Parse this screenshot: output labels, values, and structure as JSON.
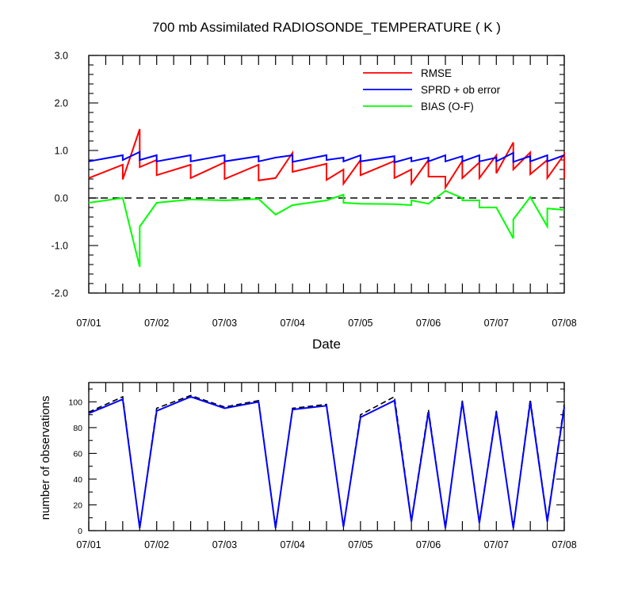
{
  "chart_data": [
    {
      "type": "line",
      "title": "700 mb Assimilated RADIOSONDE_TEMPERATURE ( K )",
      "xlabel": "Date",
      "ylabel": "",
      "x_ticks": [
        "07/01",
        "07/02",
        "07/03",
        "07/04",
        "07/05",
        "07/06",
        "07/07",
        "07/08"
      ],
      "y_ticks": [
        "-2.0",
        "-1.0",
        "0.0",
        "1.0",
        "2.0",
        "3.0"
      ],
      "xlim": [
        0,
        7
      ],
      "ylim": [
        -2.0,
        3.0
      ],
      "zero_line": true,
      "legend_position": "top-right",
      "series": [
        {
          "name": "RMSE",
          "color": "#ff0000",
          "points": [
            [
              0,
              0.42
            ],
            [
              0.5,
              0.7
            ],
            [
              0.5,
              0.39
            ],
            [
              0.75,
              1.45
            ],
            [
              0.75,
              0.65
            ],
            [
              1,
              0.8
            ],
            [
              1,
              0.48
            ],
            [
              1.5,
              0.7
            ],
            [
              1.5,
              0.42
            ],
            [
              2,
              0.75
            ],
            [
              2,
              0.4
            ],
            [
              2.5,
              0.7
            ],
            [
              2.5,
              0.37
            ],
            [
              2.75,
              0.42
            ],
            [
              3,
              0.95
            ],
            [
              3,
              0.55
            ],
            [
              3.5,
              0.72
            ],
            [
              3.5,
              0.38
            ],
            [
              3.75,
              0.6
            ],
            [
              3.75,
              0.3
            ],
            [
              4,
              0.8
            ],
            [
              4,
              0.48
            ],
            [
              4.5,
              0.78
            ],
            [
              4.5,
              0.42
            ],
            [
              4.75,
              0.6
            ],
            [
              4.75,
              0.3
            ],
            [
              5,
              0.8
            ],
            [
              5,
              0.45
            ],
            [
              5.25,
              0.45
            ],
            [
              5.25,
              0.22
            ],
            [
              5.5,
              0.78
            ],
            [
              5.5,
              0.42
            ],
            [
              5.75,
              0.75
            ],
            [
              5.75,
              0.42
            ],
            [
              6,
              0.9
            ],
            [
              6,
              0.52
            ],
            [
              6.25,
              1.17
            ],
            [
              6.25,
              0.6
            ],
            [
              6.5,
              0.96
            ],
            [
              6.5,
              0.5
            ],
            [
              6.75,
              0.8
            ],
            [
              6.75,
              0.42
            ],
            [
              7,
              0.92
            ],
            [
              7,
              0.4
            ]
          ]
        },
        {
          "name": "SPRD + ob error",
          "color": "#0000ff",
          "points": [
            [
              0,
              0.77
            ],
            [
              0.5,
              0.9
            ],
            [
              0.5,
              0.8
            ],
            [
              0.75,
              0.97
            ],
            [
              0.75,
              0.8
            ],
            [
              1,
              0.9
            ],
            [
              1,
              0.77
            ],
            [
              1.5,
              0.9
            ],
            [
              1.5,
              0.77
            ],
            [
              2,
              0.9
            ],
            [
              2,
              0.77
            ],
            [
              2.5,
              0.88
            ],
            [
              2.5,
              0.77
            ],
            [
              2.75,
              0.85
            ],
            [
              3,
              0.9
            ],
            [
              3,
              0.76
            ],
            [
              3.5,
              0.9
            ],
            [
              3.5,
              0.8
            ],
            [
              3.75,
              0.85
            ],
            [
              3.75,
              0.77
            ],
            [
              4,
              0.9
            ],
            [
              4,
              0.77
            ],
            [
              4.5,
              0.88
            ],
            [
              4.5,
              0.75
            ],
            [
              4.75,
              0.85
            ],
            [
              4.75,
              0.77
            ],
            [
              5,
              0.85
            ],
            [
              5,
              0.77
            ],
            [
              5.25,
              0.9
            ],
            [
              5.25,
              0.77
            ],
            [
              5.5,
              0.88
            ],
            [
              5.5,
              0.77
            ],
            [
              5.75,
              0.9
            ],
            [
              5.75,
              0.77
            ],
            [
              6,
              0.85
            ],
            [
              6,
              0.77
            ],
            [
              6.25,
              0.95
            ],
            [
              6.25,
              0.76
            ],
            [
              6.5,
              0.88
            ],
            [
              6.5,
              0.77
            ],
            [
              6.75,
              0.9
            ],
            [
              6.75,
              0.77
            ],
            [
              7,
              0.9
            ]
          ]
        },
        {
          "name": "BIAS (O-F)",
          "color": "#00ff00",
          "points": [
            [
              0,
              -0.1
            ],
            [
              0.5,
              0.0
            ],
            [
              0.75,
              -1.45
            ],
            [
              0.75,
              -0.6
            ],
            [
              1,
              -0.1
            ],
            [
              1.5,
              -0.03
            ],
            [
              2,
              -0.05
            ],
            [
              2.5,
              -0.02
            ],
            [
              2.75,
              -0.35
            ],
            [
              3,
              -0.15
            ],
            [
              3.5,
              -0.05
            ],
            [
              3.75,
              0.07
            ],
            [
              3.75,
              -0.1
            ],
            [
              4,
              -0.12
            ],
            [
              4.5,
              -0.13
            ],
            [
              4.75,
              -0.15
            ],
            [
              4.75,
              -0.05
            ],
            [
              5,
              -0.12
            ],
            [
              5.25,
              0.15
            ],
            [
              5.5,
              0.0
            ],
            [
              5.5,
              -0.05
            ],
            [
              5.75,
              -0.05
            ],
            [
              5.75,
              -0.2
            ],
            [
              6,
              -0.2
            ],
            [
              6.25,
              -0.85
            ],
            [
              6.25,
              -0.45
            ],
            [
              6.5,
              0.02
            ],
            [
              6.75,
              -0.6
            ],
            [
              6.75,
              -0.22
            ],
            [
              7,
              -0.25
            ]
          ]
        }
      ]
    },
    {
      "type": "line",
      "title": "",
      "xlabel": "",
      "ylabel": "number of observations",
      "x_ticks": [
        "07/01",
        "07/02",
        "07/03",
        "07/04",
        "07/05",
        "07/06",
        "07/07",
        "07/08"
      ],
      "y_ticks": [
        "0",
        "20",
        "40",
        "60",
        "80",
        "100"
      ],
      "xlim": [
        0,
        7
      ],
      "ylim": [
        0,
        115
      ],
      "series": [
        {
          "name": "",
          "color": "#000000",
          "dashed": true,
          "points": [
            [
              0,
              92
            ],
            [
              0.5,
              104
            ],
            [
              0.75,
              2
            ],
            [
              1,
              95
            ],
            [
              1.5,
              105
            ],
            [
              2,
              96
            ],
            [
              2.5,
              101
            ],
            [
              2.75,
              2
            ],
            [
              3,
              95
            ],
            [
              3.5,
              98
            ],
            [
              3.75,
              3
            ],
            [
              4,
              90
            ],
            [
              4.5,
              104
            ],
            [
              4.75,
              8
            ],
            [
              5,
              94
            ],
            [
              5.25,
              2
            ],
            [
              5.5,
              101
            ],
            [
              5.75,
              7
            ],
            [
              6,
              93
            ],
            [
              6.25,
              2
            ],
            [
              6.5,
              102
            ],
            [
              6.75,
              8
            ],
            [
              7,
              98
            ]
          ]
        },
        {
          "name": "",
          "color": "#0000ff",
          "dashed": false,
          "points": [
            [
              0,
              91
            ],
            [
              0.5,
              102
            ],
            [
              0.75,
              2
            ],
            [
              1,
              93
            ],
            [
              1.5,
              104
            ],
            [
              2,
              95
            ],
            [
              2.5,
              100
            ],
            [
              2.75,
              2
            ],
            [
              3,
              94
            ],
            [
              3.5,
              97
            ],
            [
              3.75,
              3
            ],
            [
              4,
              88
            ],
            [
              4.5,
              101
            ],
            [
              4.75,
              7
            ],
            [
              5,
              92
            ],
            [
              5.25,
              2
            ],
            [
              5.5,
              100
            ],
            [
              5.75,
              6
            ],
            [
              6,
              92
            ],
            [
              6.25,
              2
            ],
            [
              6.5,
              100
            ],
            [
              6.75,
              7
            ],
            [
              7,
              96
            ]
          ]
        }
      ]
    }
  ]
}
